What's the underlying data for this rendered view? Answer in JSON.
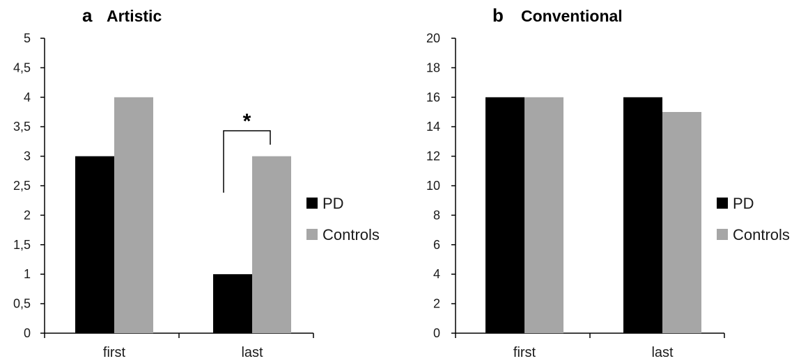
{
  "chart_data": [
    {
      "type": "bar",
      "panel_letter": "a",
      "title": "Artistic",
      "categories": [
        "first",
        "last"
      ],
      "series": [
        {
          "name": "PD",
          "color": "#000000",
          "values": [
            3,
            1
          ]
        },
        {
          "name": "Controls",
          "color": "#a6a6a6",
          "values": [
            4,
            3
          ]
        }
      ],
      "ylim": [
        0,
        5
      ],
      "yticks": [
        "0",
        "0,5",
        "1",
        "1,5",
        "2",
        "2,5",
        "3",
        "3,5",
        "4",
        "4,5",
        "5"
      ],
      "xlabel": "",
      "ylabel": "",
      "grid": false,
      "legend_position": "right",
      "annotation": {
        "text": "*",
        "category": "last"
      }
    },
    {
      "type": "bar",
      "panel_letter": "b",
      "title": "Conventional",
      "categories": [
        "first",
        "last"
      ],
      "series": [
        {
          "name": "PD",
          "color": "#000000",
          "values": [
            16,
            16
          ]
        },
        {
          "name": "Controls",
          "color": "#a6a6a6",
          "values": [
            16,
            15
          ]
        }
      ],
      "ylim": [
        0,
        20
      ],
      "yticks": [
        "0",
        "2",
        "4",
        "6",
        "8",
        "10",
        "12",
        "14",
        "16",
        "18",
        "20"
      ],
      "xlabel": "",
      "ylabel": "",
      "grid": false,
      "legend_position": "right"
    }
  ]
}
